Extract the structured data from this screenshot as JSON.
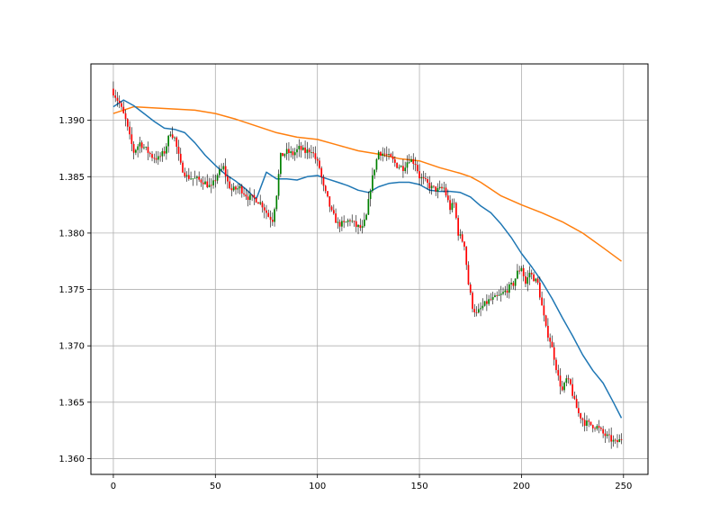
{
  "chart_data": {
    "type": "candlestick",
    "grid": true,
    "xlim": [
      -11,
      262
    ],
    "ylim": [
      1.3586,
      1.395
    ],
    "x_ticks": [
      0,
      50,
      100,
      150,
      200,
      250
    ],
    "x_tick_labels": [
      "0",
      "50",
      "100",
      "150",
      "200",
      "250"
    ],
    "y_ticks": [
      1.36,
      1.365,
      1.37,
      1.375,
      1.38,
      1.385,
      1.39
    ],
    "y_tick_labels": [
      "1.360",
      "1.365",
      "1.370",
      "1.375",
      "1.380",
      "1.385",
      "1.390"
    ],
    "colors": {
      "bullish": "#008000",
      "bearish": "#ff0000",
      "wick": "#000000",
      "ma_fast": "#1f77b4",
      "ma_slow": "#ff7f0e",
      "grid": "#b0b0b0",
      "frame": "#000000"
    },
    "close_path": [
      [
        0,
        1.3925
      ],
      [
        3,
        1.3915
      ],
      [
        6,
        1.39
      ],
      [
        8,
        1.3885
      ],
      [
        10,
        1.3872
      ],
      [
        13,
        1.388
      ],
      [
        16,
        1.3874
      ],
      [
        19,
        1.3868
      ],
      [
        22,
        1.3866
      ],
      [
        25,
        1.3872
      ],
      [
        28,
        1.389
      ],
      [
        30,
        1.3884
      ],
      [
        33,
        1.386
      ],
      [
        36,
        1.385
      ],
      [
        40,
        1.3848
      ],
      [
        44,
        1.3846
      ],
      [
        48,
        1.384
      ],
      [
        51,
        1.3852
      ],
      [
        54,
        1.3858
      ],
      [
        56,
        1.3845
      ],
      [
        58,
        1.3838
      ],
      [
        62,
        1.384
      ],
      [
        66,
        1.3832
      ],
      [
        70,
        1.383
      ],
      [
        73,
        1.3825
      ],
      [
        76,
        1.3815
      ],
      [
        78,
        1.3812
      ],
      [
        80,
        1.3835
      ],
      [
        82,
        1.3868
      ],
      [
        85,
        1.3872
      ],
      [
        88,
        1.387
      ],
      [
        91,
        1.3875
      ],
      [
        94,
        1.3872
      ],
      [
        97,
        1.3874
      ],
      [
        99,
        1.3866
      ],
      [
        101,
        1.3858
      ],
      [
        103,
        1.384
      ],
      [
        105,
        1.383
      ],
      [
        107,
        1.3818
      ],
      [
        110,
        1.3808
      ],
      [
        113,
        1.3808
      ],
      [
        116,
        1.3812
      ],
      [
        119,
        1.3806
      ],
      [
        122,
        1.3804
      ],
      [
        124,
        1.3815
      ],
      [
        126,
        1.384
      ],
      [
        128,
        1.3858
      ],
      [
        130,
        1.3872
      ],
      [
        133,
        1.387
      ],
      [
        136,
        1.3866
      ],
      [
        139,
        1.386
      ],
      [
        142,
        1.3858
      ],
      [
        145,
        1.3866
      ],
      [
        148,
        1.3862
      ],
      [
        150,
        1.385
      ],
      [
        153,
        1.3845
      ],
      [
        156,
        1.384
      ],
      [
        159,
        1.3838
      ],
      [
        162,
        1.384
      ],
      [
        165,
        1.3822
      ],
      [
        167,
        1.3826
      ],
      [
        169,
        1.38
      ],
      [
        172,
        1.379
      ],
      [
        174,
        1.3755
      ],
      [
        176,
        1.3735
      ],
      [
        178,
        1.3728
      ],
      [
        181,
        1.3735
      ],
      [
        184,
        1.374
      ],
      [
        187,
        1.3742
      ],
      [
        190,
        1.3745
      ],
      [
        193,
        1.375
      ],
      [
        196,
        1.3755
      ],
      [
        198,
        1.3765
      ],
      [
        200,
        1.377
      ],
      [
        202,
        1.3755
      ],
      [
        204,
        1.3765
      ],
      [
        206,
        1.376
      ],
      [
        208,
        1.3755
      ],
      [
        210,
        1.3735
      ],
      [
        212,
        1.3715
      ],
      [
        214,
        1.3705
      ],
      [
        216,
        1.369
      ],
      [
        218,
        1.3672
      ],
      [
        220,
        1.366
      ],
      [
        222,
        1.367
      ],
      [
        224,
        1.3665
      ],
      [
        226,
        1.365
      ],
      [
        228,
        1.364
      ],
      [
        231,
        1.3632
      ],
      [
        234,
        1.363
      ],
      [
        237,
        1.3628
      ],
      [
        240,
        1.3622
      ],
      [
        243,
        1.3618
      ],
      [
        246,
        1.3614
      ],
      [
        248,
        1.3616
      ],
      [
        249,
        1.3618
      ]
    ],
    "ma_fast": {
      "x": [
        0,
        5,
        10,
        15,
        20,
        25,
        30,
        35,
        40,
        45,
        50,
        55,
        60,
        65,
        70,
        75,
        80,
        85,
        90,
        95,
        100,
        105,
        110,
        115,
        120,
        125,
        130,
        135,
        140,
        145,
        150,
        155,
        160,
        165,
        170,
        175,
        180,
        185,
        190,
        195,
        200,
        205,
        210,
        215,
        220,
        225,
        230,
        235,
        240,
        245,
        249
      ],
      "y": [
        1.3912,
        1.3918,
        1.3913,
        1.3906,
        1.3899,
        1.3893,
        1.3892,
        1.3889,
        1.388,
        1.3869,
        1.386,
        1.3852,
        1.3846,
        1.3839,
        1.383,
        1.3854,
        1.3848,
        1.3848,
        1.3847,
        1.385,
        1.3851,
        1.3848,
        1.3845,
        1.3842,
        1.3838,
        1.3836,
        1.3841,
        1.3844,
        1.3845,
        1.3845,
        1.3843,
        1.3838,
        1.3837,
        1.3837,
        1.3836,
        1.3832,
        1.3824,
        1.3818,
        1.3808,
        1.3796,
        1.3782,
        1.377,
        1.3757,
        1.3742,
        1.3725,
        1.3709,
        1.3692,
        1.3678,
        1.3667,
        1.365,
        1.3636
      ]
    },
    "ma_slow": {
      "x": [
        0,
        10,
        20,
        30,
        40,
        50,
        60,
        70,
        80,
        90,
        100,
        110,
        120,
        130,
        140,
        150,
        160,
        170,
        175,
        180,
        190,
        200,
        210,
        220,
        230,
        240,
        249
      ],
      "y": [
        1.3906,
        1.3912,
        1.3911,
        1.391,
        1.3909,
        1.3906,
        1.3901,
        1.3895,
        1.3889,
        1.3885,
        1.3883,
        1.3878,
        1.3873,
        1.387,
        1.3866,
        1.3864,
        1.3858,
        1.3853,
        1.385,
        1.3845,
        1.3833,
        1.3825,
        1.3818,
        1.381,
        1.38,
        1.3787,
        1.3775
      ]
    }
  }
}
